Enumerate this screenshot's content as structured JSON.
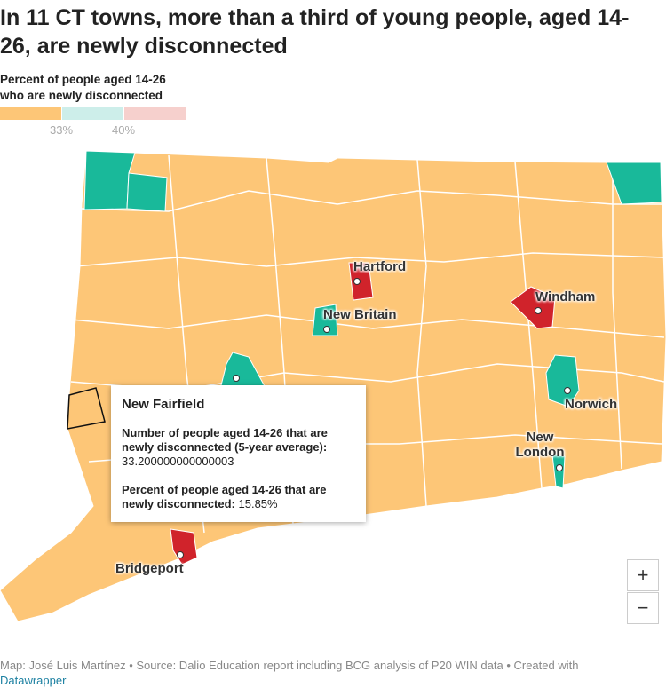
{
  "header": {
    "title": "In 11 CT towns, more than a third of young people, aged 14-26, are newly disconnected",
    "legend_title": "Percent of people aged 14-26 who are newly disconnected",
    "legend_labels": [
      "33%",
      "40%"
    ]
  },
  "map": {
    "places": [
      "Hartford",
      "New Britain",
      "Windham",
      "Norwich",
      "New London",
      "Bridgeport"
    ]
  },
  "tooltip": {
    "title": "New Fairfield",
    "label_1": "Number of people aged 14-26 that are newly disconnected (5-year average):",
    "value_1": "33.200000000000003",
    "label_2": "Percent of people aged 14-26 that are newly disconnected:",
    "value_2": "15.85%"
  },
  "controls": {
    "zoom_in": "+",
    "zoom_out": "−"
  },
  "footer": {
    "text": "Map: José Luis Martínez • Source: Dalio Education report including BCG analysis of P20 WIN data • Created with",
    "link": "Datawrapper"
  }
}
